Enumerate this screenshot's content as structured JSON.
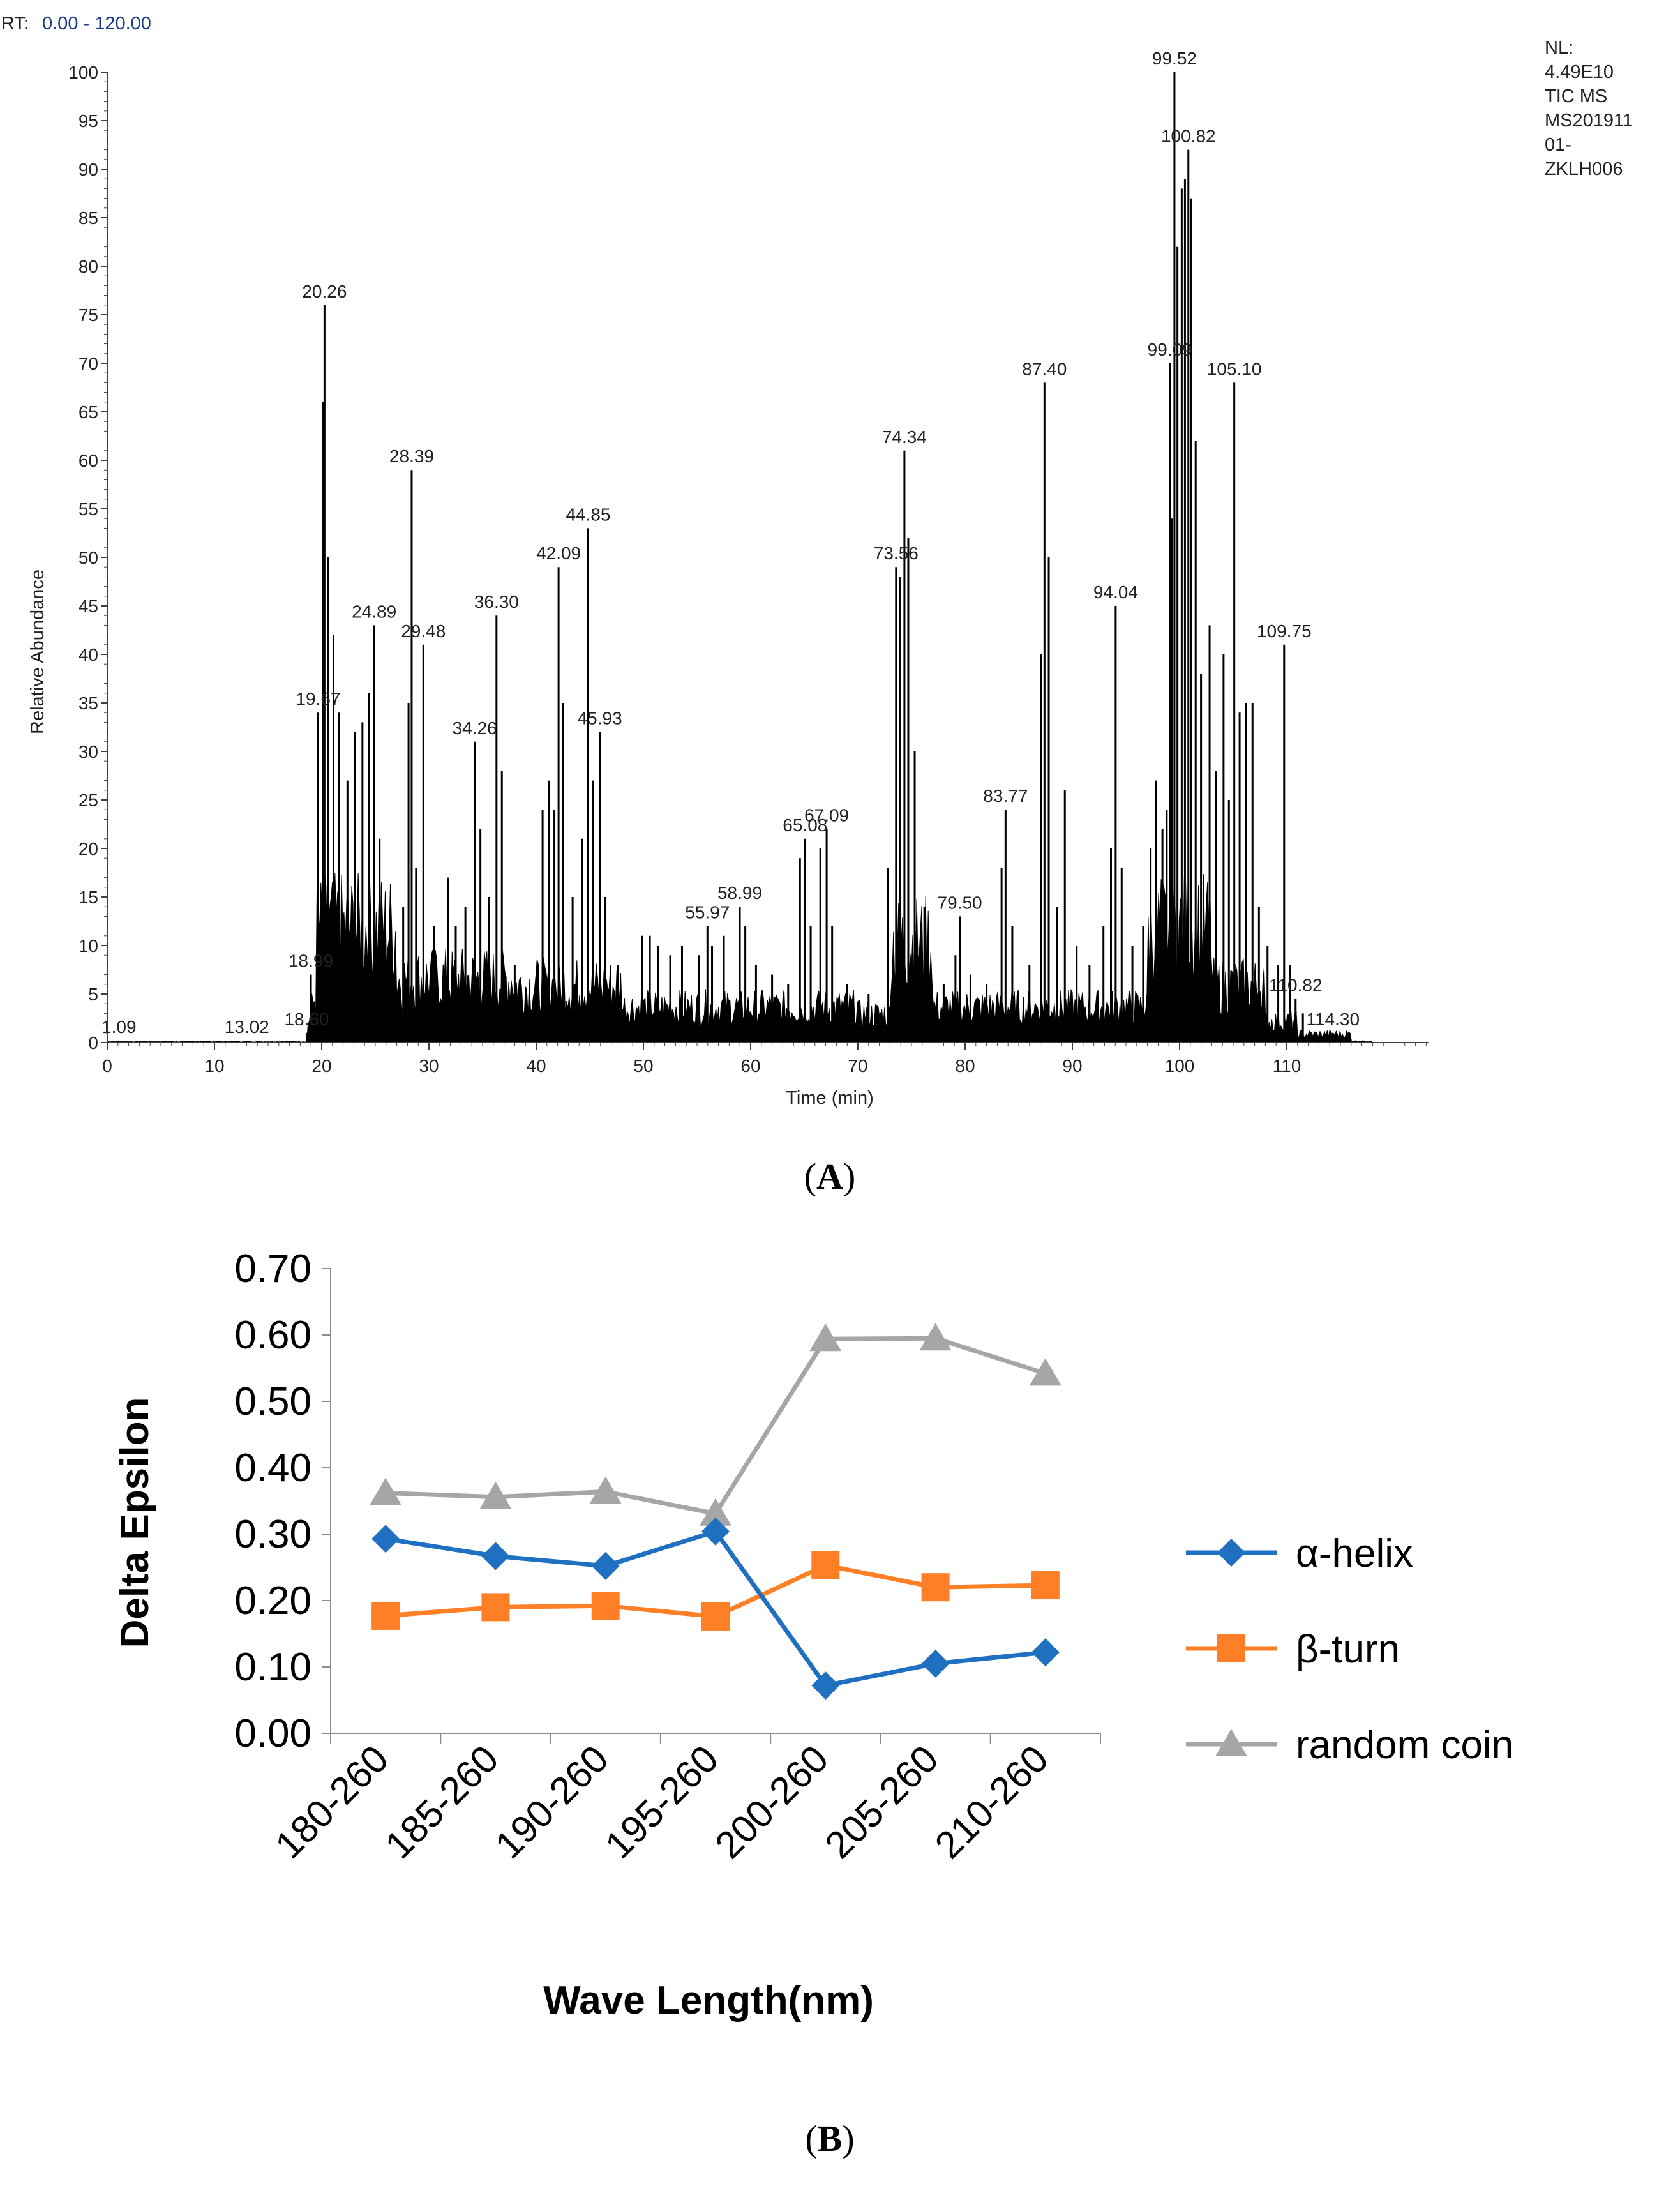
{
  "panel_a": {
    "rt_label": "RT:",
    "rt_range": "0.00 - 120.00",
    "nl_text": [
      "NL:",
      "4.49E10",
      "TIC  MS",
      "MS201911",
      "01-",
      "ZKLH006"
    ],
    "caption": "A",
    "colors": {
      "trace": "#000000",
      "rt_range": "#1f3c88",
      "axis": "#404040"
    }
  },
  "panel_b": {
    "caption": "B",
    "colors": {
      "alpha_helix": "#1F70C1",
      "beta_turn": "#FF7F27",
      "random_coil": "#A6A6A6"
    }
  },
  "chart_data": [
    {
      "type": "line",
      "title": "",
      "xlabel": "Time (min)",
      "ylabel": "Relative Abundance",
      "xlim": [
        0,
        120
      ],
      "ylim": [
        0,
        100
      ],
      "x_ticks": [
        0,
        10,
        20,
        30,
        40,
        50,
        60,
        70,
        80,
        90,
        100,
        110
      ],
      "y_ticks": [
        0,
        5,
        10,
        15,
        20,
        25,
        30,
        35,
        40,
        45,
        50,
        55,
        60,
        65,
        70,
        75,
        80,
        85,
        90,
        95,
        100
      ],
      "peaks": [
        {
          "label": "1.09",
          "x": 1.09,
          "y": 0.2
        },
        {
          "label": "13.02",
          "x": 13.02,
          "y": 0.2
        },
        {
          "label": "18.60",
          "x": 18.6,
          "y": 1.0
        },
        {
          "label": "18.99",
          "x": 18.99,
          "y": 7.0
        },
        {
          "label": "19.67",
          "x": 19.67,
          "y": 34
        },
        {
          "label": "20.26",
          "x": 20.26,
          "y": 76
        },
        {
          "label": "24.89",
          "x": 24.89,
          "y": 43
        },
        {
          "label": "28.39",
          "x": 28.39,
          "y": 59
        },
        {
          "label": "29.48",
          "x": 29.48,
          "y": 41
        },
        {
          "label": "34.26",
          "x": 34.26,
          "y": 31
        },
        {
          "label": "36.30",
          "x": 36.3,
          "y": 44
        },
        {
          "label": "42.09",
          "x": 42.09,
          "y": 49
        },
        {
          "label": "44.85",
          "x": 44.85,
          "y": 53
        },
        {
          "label": "45.93",
          "x": 45.93,
          "y": 32
        },
        {
          "label": "55.97",
          "x": 55.97,
          "y": 12
        },
        {
          "label": "58.99",
          "x": 58.99,
          "y": 14
        },
        {
          "label": "65.08",
          "x": 65.08,
          "y": 21
        },
        {
          "label": "67.09",
          "x": 67.09,
          "y": 22
        },
        {
          "label": "73.56",
          "x": 73.56,
          "y": 49
        },
        {
          "label": "74.34",
          "x": 74.34,
          "y": 61
        },
        {
          "label": "79.50",
          "x": 79.5,
          "y": 13
        },
        {
          "label": "83.77",
          "x": 83.77,
          "y": 24
        },
        {
          "label": "87.40",
          "x": 87.4,
          "y": 68
        },
        {
          "label": "94.04",
          "x": 94.04,
          "y": 45
        },
        {
          "label": "99.09",
          "x": 99.09,
          "y": 70
        },
        {
          "label": "99.52",
          "x": 99.52,
          "y": 100
        },
        {
          "label": "100.82",
          "x": 100.82,
          "y": 92
        },
        {
          "label": "105.10",
          "x": 105.1,
          "y": 68
        },
        {
          "label": "109.75",
          "x": 109.75,
          "y": 41
        },
        {
          "label": "110.82",
          "x": 110.82,
          "y": 4.5
        },
        {
          "label": "114.30",
          "x": 114.3,
          "y": 1.0
        }
      ],
      "extra_lines": [
        {
          "x": 20.1,
          "y": 66
        },
        {
          "x": 20.6,
          "y": 50
        },
        {
          "x": 21.1,
          "y": 42
        },
        {
          "x": 21.6,
          "y": 34
        },
        {
          "x": 22.4,
          "y": 27
        },
        {
          "x": 23.1,
          "y": 32
        },
        {
          "x": 23.8,
          "y": 33
        },
        {
          "x": 24.4,
          "y": 36
        },
        {
          "x": 25.4,
          "y": 21
        },
        {
          "x": 26.4,
          "y": 12
        },
        {
          "x": 27.6,
          "y": 14
        },
        {
          "x": 28.1,
          "y": 35
        },
        {
          "x": 28.8,
          "y": 18
        },
        {
          "x": 30.5,
          "y": 12
        },
        {
          "x": 31.8,
          "y": 17
        },
        {
          "x": 32.5,
          "y": 12
        },
        {
          "x": 33.4,
          "y": 14
        },
        {
          "x": 34.8,
          "y": 22
        },
        {
          "x": 35.6,
          "y": 15
        },
        {
          "x": 36.8,
          "y": 28
        },
        {
          "x": 38.0,
          "y": 8
        },
        {
          "x": 40.6,
          "y": 24
        },
        {
          "x": 41.2,
          "y": 27
        },
        {
          "x": 41.7,
          "y": 24
        },
        {
          "x": 42.5,
          "y": 35
        },
        {
          "x": 43.4,
          "y": 15
        },
        {
          "x": 44.3,
          "y": 21
        },
        {
          "x": 45.3,
          "y": 27
        },
        {
          "x": 46.4,
          "y": 15
        },
        {
          "x": 47.6,
          "y": 8
        },
        {
          "x": 49.9,
          "y": 11
        },
        {
          "x": 50.6,
          "y": 11
        },
        {
          "x": 51.4,
          "y": 10
        },
        {
          "x": 52.5,
          "y": 9
        },
        {
          "x": 53.6,
          "y": 10
        },
        {
          "x": 55.2,
          "y": 9
        },
        {
          "x": 56.4,
          "y": 10
        },
        {
          "x": 57.5,
          "y": 11
        },
        {
          "x": 59.5,
          "y": 12
        },
        {
          "x": 60.5,
          "y": 8
        },
        {
          "x": 62.0,
          "y": 7
        },
        {
          "x": 63.5,
          "y": 6
        },
        {
          "x": 64.6,
          "y": 19
        },
        {
          "x": 65.6,
          "y": 12
        },
        {
          "x": 66.5,
          "y": 20
        },
        {
          "x": 67.6,
          "y": 12
        },
        {
          "x": 69.0,
          "y": 6
        },
        {
          "x": 71.0,
          "y": 5
        },
        {
          "x": 72.8,
          "y": 18
        },
        {
          "x": 73.9,
          "y": 48
        },
        {
          "x": 74.7,
          "y": 52
        },
        {
          "x": 75.3,
          "y": 30
        },
        {
          "x": 76.2,
          "y": 14
        },
        {
          "x": 78.0,
          "y": 6
        },
        {
          "x": 79.1,
          "y": 9
        },
        {
          "x": 80.5,
          "y": 7
        },
        {
          "x": 82.0,
          "y": 6
        },
        {
          "x": 83.4,
          "y": 18
        },
        {
          "x": 84.4,
          "y": 12
        },
        {
          "x": 86.0,
          "y": 8
        },
        {
          "x": 87.1,
          "y": 40
        },
        {
          "x": 87.8,
          "y": 50
        },
        {
          "x": 88.6,
          "y": 14
        },
        {
          "x": 89.3,
          "y": 26
        },
        {
          "x": 90.4,
          "y": 10
        },
        {
          "x": 91.6,
          "y": 8
        },
        {
          "x": 92.9,
          "y": 12
        },
        {
          "x": 93.6,
          "y": 20
        },
        {
          "x": 94.6,
          "y": 18
        },
        {
          "x": 95.6,
          "y": 10
        },
        {
          "x": 96.6,
          "y": 12
        },
        {
          "x": 97.3,
          "y": 20
        },
        {
          "x": 97.8,
          "y": 27
        },
        {
          "x": 98.4,
          "y": 22
        },
        {
          "x": 98.8,
          "y": 24
        },
        {
          "x": 99.3,
          "y": 54
        },
        {
          "x": 99.8,
          "y": 82
        },
        {
          "x": 100.2,
          "y": 88
        },
        {
          "x": 100.5,
          "y": 89
        },
        {
          "x": 101.1,
          "y": 87
        },
        {
          "x": 101.5,
          "y": 62
        },
        {
          "x": 102.0,
          "y": 38
        },
        {
          "x": 102.8,
          "y": 43
        },
        {
          "x": 103.4,
          "y": 28
        },
        {
          "x": 104.1,
          "y": 40
        },
        {
          "x": 104.6,
          "y": 25
        },
        {
          "x": 105.6,
          "y": 34
        },
        {
          "x": 106.2,
          "y": 35
        },
        {
          "x": 106.8,
          "y": 35
        },
        {
          "x": 107.4,
          "y": 14
        },
        {
          "x": 108.2,
          "y": 10
        },
        {
          "x": 109.2,
          "y": 8
        },
        {
          "x": 110.3,
          "y": 8
        },
        {
          "x": 111.5,
          "y": 3
        }
      ]
    },
    {
      "type": "line",
      "title": "",
      "xlabel": "Wave Length(nm)",
      "ylabel": "Delta Epsilon",
      "categories": [
        "180-260",
        "185-260",
        "190-260",
        "195-260",
        "200-260",
        "205-260",
        "210-260"
      ],
      "ylim": [
        0,
        0.7
      ],
      "y_ticks": [
        "0.00",
        "0.10",
        "0.20",
        "0.30",
        "0.40",
        "0.50",
        "0.60",
        "0.70"
      ],
      "legend_position": "right",
      "series": [
        {
          "name": "α-helix",
          "marker": "diamond",
          "values": [
            0.293,
            0.267,
            0.252,
            0.304,
            0.072,
            0.105,
            0.122
          ]
        },
        {
          "name": "β-turn",
          "marker": "square",
          "values": [
            0.177,
            0.19,
            0.192,
            0.176,
            0.253,
            0.22,
            0.223
          ]
        },
        {
          "name": "random coin",
          "marker": "triangle",
          "values": [
            0.362,
            0.356,
            0.364,
            0.331,
            0.594,
            0.595,
            0.542
          ]
        }
      ]
    }
  ]
}
